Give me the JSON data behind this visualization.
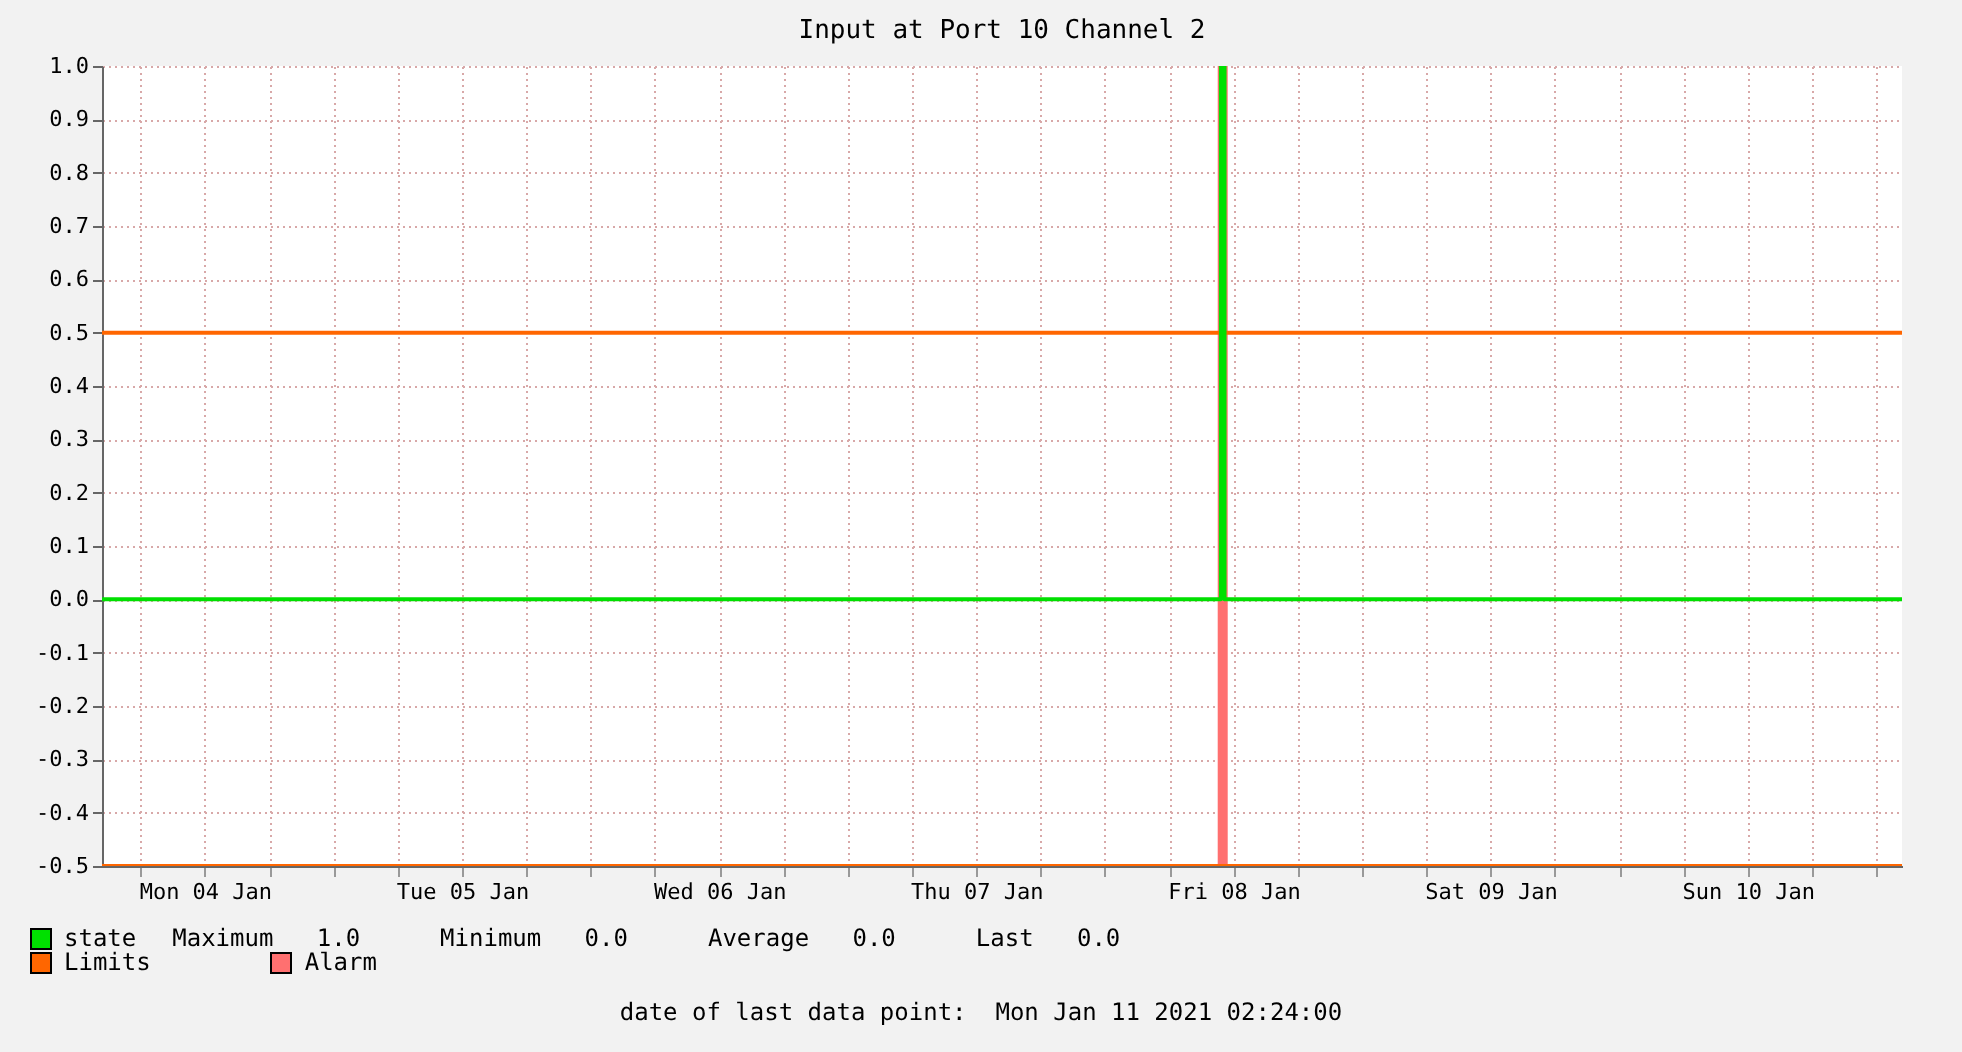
{
  "chart_data": {
    "type": "line",
    "title": "Input at Port 10 Channel 2",
    "xlim": [
      "2021-01-04T02:24",
      "2021-01-11T02:24"
    ],
    "xticks": [
      {
        "value": "2021-01-04T06:00",
        "label": null
      },
      {
        "value": "2021-01-04T12:00",
        "label": "Mon 04 Jan"
      },
      {
        "value": "2021-01-04T18:00",
        "label": null
      },
      {
        "value": "2021-01-05T00:00",
        "label": null
      },
      {
        "value": "2021-01-05T06:00",
        "label": null
      },
      {
        "value": "2021-01-05T12:00",
        "label": "Tue 05 Jan"
      },
      {
        "value": "2021-01-05T18:00",
        "label": null
      },
      {
        "value": "2021-01-06T00:00",
        "label": null
      },
      {
        "value": "2021-01-06T06:00",
        "label": null
      },
      {
        "value": "2021-01-06T12:00",
        "label": "Wed 06 Jan"
      },
      {
        "value": "2021-01-06T18:00",
        "label": null
      },
      {
        "value": "2021-01-07T00:00",
        "label": null
      },
      {
        "value": "2021-01-07T06:00",
        "label": null
      },
      {
        "value": "2021-01-07T12:00",
        "label": "Thu 07 Jan"
      },
      {
        "value": "2021-01-07T18:00",
        "label": null
      },
      {
        "value": "2021-01-08T00:00",
        "label": null
      },
      {
        "value": "2021-01-08T06:00",
        "label": null
      },
      {
        "value": "2021-01-08T12:00",
        "label": "Fri 08 Jan"
      },
      {
        "value": "2021-01-08T18:00",
        "label": null
      },
      {
        "value": "2021-01-09T00:00",
        "label": null
      },
      {
        "value": "2021-01-09T06:00",
        "label": null
      },
      {
        "value": "2021-01-09T12:00",
        "label": "Sat 09 Jan"
      },
      {
        "value": "2021-01-09T18:00",
        "label": null
      },
      {
        "value": "2021-01-10T00:00",
        "label": null
      },
      {
        "value": "2021-01-10T06:00",
        "label": null
      },
      {
        "value": "2021-01-10T12:00",
        "label": "Sun 10 Jan"
      },
      {
        "value": "2021-01-10T18:00",
        "label": null
      },
      {
        "value": "2021-01-11T00:00",
        "label": null
      }
    ],
    "ylim": [
      -0.5,
      1.0
    ],
    "yticks": [
      {
        "value": -0.5,
        "label": "-0.5"
      },
      {
        "value": -0.4,
        "label": "-0.4"
      },
      {
        "value": -0.3,
        "label": "-0.3"
      },
      {
        "value": -0.2,
        "label": "-0.2"
      },
      {
        "value": -0.1,
        "label": "-0.1"
      },
      {
        "value": 0,
        "label": "0.0"
      },
      {
        "value": 0.1,
        "label": "0.1"
      },
      {
        "value": 0.2,
        "label": "0.2"
      },
      {
        "value": 0.3,
        "label": "0.3"
      },
      {
        "value": 0.4,
        "label": "0.4"
      },
      {
        "value": 0.5,
        "label": "0.5"
      },
      {
        "value": 0.6,
        "label": "0.6"
      },
      {
        "value": 0.7,
        "label": "0.7"
      },
      {
        "value": 0.8,
        "label": "0.8"
      },
      {
        "value": 0.9,
        "label": "0.9"
      },
      {
        "value": 1.0,
        "label": "1.0"
      }
    ],
    "grid": true,
    "legend": "bottom",
    "series": [
      {
        "name": "Alarm",
        "type": "line",
        "color": "#ff7070",
        "x": [
          "2021-01-08T11:00",
          "2021-01-08T11:00"
        ],
        "values": [
          -0.5,
          1.0
        ]
      },
      {
        "name": "Limits",
        "type": "line",
        "color": "#ff6600",
        "x": [
          "2021-01-04T02:24",
          "2021-01-11T02:24"
        ],
        "values": [
          0.5,
          0.5
        ]
      },
      {
        "type": "line",
        "color": "#ff6600",
        "x": [
          "2021-01-04T02:24",
          "2021-01-11T02:24"
        ],
        "values": [
          -0.5,
          -0.5
        ]
      },
      {
        "name": "state",
        "type": "step",
        "color": "#00e000",
        "x": [
          "2021-01-04T02:24",
          "2021-01-08T10:50",
          "2021-01-08T11:10",
          "2021-01-11T02:24"
        ],
        "values": [
          0,
          1,
          0,
          0
        ]
      }
    ],
    "annotations": [
      "Maximum   1.0",
      "Minimum   0.0",
      "Average   0.0",
      "Last   0.0",
      "date of last data point:  Mon Jan 11 2021 02:24:00"
    ]
  }
}
